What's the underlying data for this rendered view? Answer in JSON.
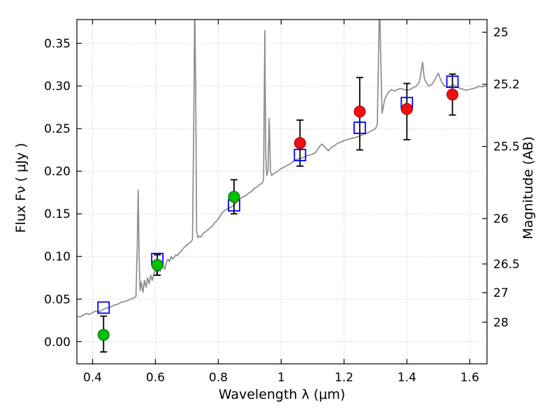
{
  "chart_data": {
    "type": "line",
    "title": "",
    "xlabel": "Wavelength  λ  (μm)",
    "ylabel": "Flux  Fν  ( μJy )",
    "ylabel_right": "Magnitude (AB)",
    "xlim": [
      0.35,
      1.655
    ],
    "ylim": [
      -0.026,
      0.378
    ],
    "grid": {
      "show": true,
      "color": "#b5b5b5",
      "style": "dotted"
    },
    "frame_color": "#000000",
    "x_ticks": {
      "values": [
        0.4,
        0.6,
        0.8,
        1.0,
        1.2,
        1.4,
        1.6
      ],
      "labels": [
        "0.4",
        "0.6",
        "0.8",
        "1",
        "1.2",
        "1.4",
        "1.6"
      ]
    },
    "y_ticks_left": {
      "values": [
        0.0,
        0.05,
        0.1,
        0.15,
        0.2,
        0.25,
        0.3,
        0.35
      ],
      "labels": [
        "0.00",
        "0.05",
        "0.10",
        "0.15",
        "0.20",
        "0.25",
        "0.30",
        "0.35"
      ]
    },
    "y_ticks_right": {
      "values": [
        0.3631,
        0.302,
        0.2291,
        0.1445,
        0.0912,
        0.0575,
        0.0229
      ],
      "labels": [
        "25",
        "25.2",
        "25.5",
        "26",
        "26.5",
        "27",
        "28"
      ]
    },
    "spectrum": {
      "name": "model-spectrum",
      "color": "#8c8c8c",
      "line_width": 1.7,
      "points": [
        [
          0.35,
          0.03
        ],
        [
          0.36,
          0.029
        ],
        [
          0.37,
          0.031
        ],
        [
          0.38,
          0.033
        ],
        [
          0.39,
          0.032
        ],
        [
          0.4,
          0.034
        ],
        [
          0.41,
          0.036
        ],
        [
          0.42,
          0.035
        ],
        [
          0.43,
          0.037
        ],
        [
          0.44,
          0.039
        ],
        [
          0.45,
          0.04
        ],
        [
          0.46,
          0.041
        ],
        [
          0.47,
          0.043
        ],
        [
          0.48,
          0.044
        ],
        [
          0.49,
          0.046
        ],
        [
          0.5,
          0.047
        ],
        [
          0.51,
          0.048
        ],
        [
          0.52,
          0.05
        ],
        [
          0.53,
          0.051
        ],
        [
          0.538,
          0.053
        ],
        [
          0.542,
          0.11
        ],
        [
          0.545,
          0.178
        ],
        [
          0.548,
          0.1
        ],
        [
          0.551,
          0.06
        ],
        [
          0.555,
          0.07
        ],
        [
          0.56,
          0.058
        ],
        [
          0.565,
          0.072
        ],
        [
          0.57,
          0.064
        ],
        [
          0.575,
          0.075
        ],
        [
          0.58,
          0.068
        ],
        [
          0.585,
          0.078
        ],
        [
          0.59,
          0.072
        ],
        [
          0.595,
          0.08
        ],
        [
          0.6,
          0.085
        ],
        [
          0.605,
          0.078
        ],
        [
          0.61,
          0.088
        ],
        [
          0.615,
          0.082
        ],
        [
          0.62,
          0.094
        ],
        [
          0.625,
          0.088
        ],
        [
          0.63,
          0.085
        ],
        [
          0.635,
          0.093
        ],
        [
          0.64,
          0.097
        ],
        [
          0.645,
          0.094
        ],
        [
          0.65,
          0.1
        ],
        [
          0.655,
          0.097
        ],
        [
          0.66,
          0.099
        ],
        [
          0.665,
          0.102
        ],
        [
          0.67,
          0.101
        ],
        [
          0.675,
          0.104
        ],
        [
          0.68,
          0.105
        ],
        [
          0.685,
          0.108
        ],
        [
          0.69,
          0.11
        ],
        [
          0.695,
          0.112
        ],
        [
          0.7,
          0.113
        ],
        [
          0.705,
          0.115
        ],
        [
          0.71,
          0.116
        ],
        [
          0.715,
          0.118
        ],
        [
          0.718,
          0.12
        ],
        [
          0.722,
          0.26
        ],
        [
          0.725,
          0.4
        ],
        [
          0.728,
          0.3
        ],
        [
          0.731,
          0.13
        ],
        [
          0.735,
          0.122
        ],
        [
          0.74,
          0.124
        ],
        [
          0.745,
          0.123
        ],
        [
          0.75,
          0.126
        ],
        [
          0.755,
          0.128
        ],
        [
          0.76,
          0.129
        ],
        [
          0.765,
          0.131
        ],
        [
          0.77,
          0.132
        ],
        [
          0.775,
          0.134
        ],
        [
          0.78,
          0.135
        ],
        [
          0.785,
          0.138
        ],
        [
          0.79,
          0.14
        ],
        [
          0.795,
          0.142
        ],
        [
          0.8,
          0.144
        ],
        [
          0.805,
          0.147
        ],
        [
          0.81,
          0.15
        ],
        [
          0.815,
          0.152
        ],
        [
          0.82,
          0.154
        ],
        [
          0.825,
          0.155
        ],
        [
          0.83,
          0.156
        ],
        [
          0.835,
          0.157
        ],
        [
          0.84,
          0.158
        ],
        [
          0.845,
          0.159
        ],
        [
          0.85,
          0.16
        ],
        [
          0.855,
          0.162
        ],
        [
          0.86,
          0.164
        ],
        [
          0.865,
          0.166
        ],
        [
          0.87,
          0.168
        ],
        [
          0.875,
          0.169
        ],
        [
          0.88,
          0.17
        ],
        [
          0.885,
          0.171
        ],
        [
          0.89,
          0.172
        ],
        [
          0.895,
          0.174
        ],
        [
          0.9,
          0.175
        ],
        [
          0.905,
          0.176
        ],
        [
          0.91,
          0.178
        ],
        [
          0.915,
          0.18
        ],
        [
          0.92,
          0.181
        ],
        [
          0.925,
          0.182
        ],
        [
          0.93,
          0.184
        ],
        [
          0.935,
          0.185
        ],
        [
          0.94,
          0.186
        ],
        [
          0.944,
          0.19
        ],
        [
          0.948,
          0.365
        ],
        [
          0.951,
          0.22
        ],
        [
          0.954,
          0.195
        ],
        [
          0.958,
          0.2
        ],
        [
          0.962,
          0.262
        ],
        [
          0.966,
          0.2
        ],
        [
          0.97,
          0.195
        ],
        [
          0.975,
          0.197
        ],
        [
          0.98,
          0.198
        ],
        [
          0.985,
          0.199
        ],
        [
          0.99,
          0.2
        ],
        [
          0.995,
          0.202
        ],
        [
          1.0,
          0.203
        ],
        [
          1.01,
          0.205
        ],
        [
          1.02,
          0.207
        ],
        [
          1.03,
          0.209
        ],
        [
          1.04,
          0.212
        ],
        [
          1.05,
          0.214
        ],
        [
          1.06,
          0.215
        ],
        [
          1.07,
          0.216
        ],
        [
          1.08,
          0.218
        ],
        [
          1.09,
          0.219
        ],
        [
          1.1,
          0.22
        ],
        [
          1.11,
          0.222
        ],
        [
          1.12,
          0.228
        ],
        [
          1.13,
          0.232
        ],
        [
          1.14,
          0.228
        ],
        [
          1.15,
          0.224
        ],
        [
          1.16,
          0.228
        ],
        [
          1.17,
          0.23
        ],
        [
          1.18,
          0.233
        ],
        [
          1.19,
          0.234
        ],
        [
          1.2,
          0.236
        ],
        [
          1.21,
          0.237
        ],
        [
          1.22,
          0.238
        ],
        [
          1.23,
          0.239
        ],
        [
          1.24,
          0.24
        ],
        [
          1.25,
          0.241
        ],
        [
          1.26,
          0.243
        ],
        [
          1.27,
          0.244
        ],
        [
          1.28,
          0.246
        ],
        [
          1.29,
          0.248
        ],
        [
          1.3,
          0.25
        ],
        [
          1.306,
          0.255
        ],
        [
          1.31,
          0.34
        ],
        [
          1.313,
          0.4
        ],
        [
          1.317,
          0.33
        ],
        [
          1.321,
          0.268
        ],
        [
          1.33,
          0.285
        ],
        [
          1.34,
          0.292
        ],
        [
          1.35,
          0.296
        ],
        [
          1.36,
          0.294
        ],
        [
          1.37,
          0.296
        ],
        [
          1.38,
          0.297
        ],
        [
          1.39,
          0.296
        ],
        [
          1.4,
          0.295
        ],
        [
          1.41,
          0.296
        ],
        [
          1.42,
          0.298
        ],
        [
          1.43,
          0.3
        ],
        [
          1.44,
          0.305
        ],
        [
          1.45,
          0.328
        ],
        [
          1.455,
          0.31
        ],
        [
          1.46,
          0.305
        ],
        [
          1.47,
          0.3
        ],
        [
          1.48,
          0.302
        ],
        [
          1.49,
          0.308
        ],
        [
          1.5,
          0.315
        ],
        [
          1.51,
          0.305
        ],
        [
          1.52,
          0.3
        ],
        [
          1.53,
          0.299
        ],
        [
          1.54,
          0.3
        ],
        [
          1.55,
          0.301
        ],
        [
          1.56,
          0.299
        ],
        [
          1.57,
          0.297
        ],
        [
          1.58,
          0.296
        ],
        [
          1.59,
          0.295
        ],
        [
          1.6,
          0.296
        ],
        [
          1.61,
          0.297
        ],
        [
          1.62,
          0.298
        ],
        [
          1.63,
          0.3
        ],
        [
          1.64,
          0.299
        ],
        [
          1.65,
          0.3
        ],
        [
          1.655,
          0.3
        ]
      ]
    },
    "series": [
      {
        "name": "observed-optical-points",
        "marker": "circle",
        "marker_size": 8,
        "face_color": "#00c000",
        "edge_color": "#006600",
        "error_color": "#000000",
        "x": [
          0.435,
          0.606,
          0.85
        ],
        "y": [
          0.008,
          0.09,
          0.17
        ],
        "err_lo": [
          0.02,
          0.012,
          0.02
        ],
        "err_hi": [
          0.022,
          0.012,
          0.02
        ]
      },
      {
        "name": "observed-infrared-points",
        "marker": "circle",
        "marker_size": 8,
        "face_color": "#ee1111",
        "edge_color": "#990000",
        "error_color": "#000000",
        "x": [
          1.06,
          1.25,
          1.4,
          1.545
        ],
        "y": [
          0.233,
          0.27,
          0.273,
          0.29
        ],
        "err_lo": [
          0.027,
          0.045,
          0.036,
          0.024
        ],
        "err_hi": [
          0.027,
          0.04,
          0.03,
          0.024
        ]
      },
      {
        "name": "model-photometry-squares",
        "marker": "square-open",
        "marker_size": 16,
        "face_color": "none",
        "edge_color": "#0000ee",
        "x": [
          0.435,
          0.606,
          0.85,
          1.06,
          1.25,
          1.4,
          1.545
        ],
        "y": [
          0.04,
          0.097,
          0.16,
          0.219,
          0.251,
          0.28,
          0.305
        ]
      }
    ]
  }
}
